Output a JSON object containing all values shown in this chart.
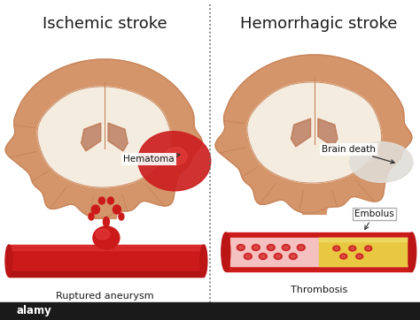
{
  "title_left": "Ischemic stroke",
  "title_right": "Hemorrhagic stroke",
  "label_hematoma": "Hematoma",
  "label_brain_death": "Brain death",
  "label_embolus": "Embolus",
  "label_ruptured": "Ruptured aneurysm",
  "label_thrombosis": "Thrombosis",
  "bg_color": "#ffffff",
  "brain_outer_color": "#d4956a",
  "brain_cortex_color": "#c8845a",
  "brain_inner_color": "#f0dcc8",
  "brain_white_color": "#f5ece0",
  "ventricle_color": "#b06848",
  "hematoma_color": "#cc2020",
  "hematoma_light": "#e84040",
  "brain_death_color": "#e0ddd8",
  "blood_vessel_red": "#cc1a1a",
  "blood_vessel_light": "#e84040",
  "embolus_color": "#e8c840",
  "embolus_light": "#f0e070",
  "rbc_color": "#cc2020",
  "title_fontsize": 13,
  "label_fontsize": 7.5,
  "divider_color": "#666666"
}
